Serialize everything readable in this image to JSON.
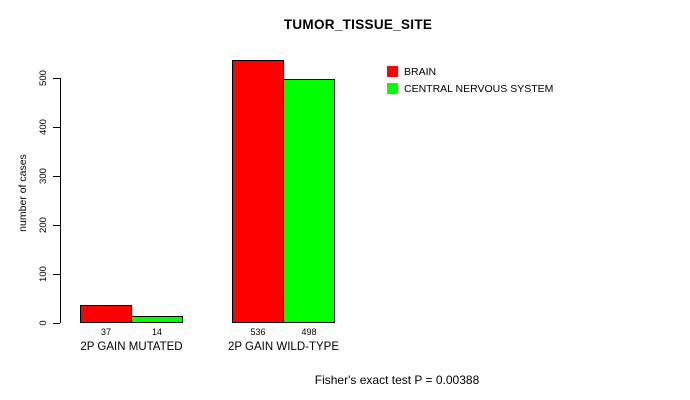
{
  "chart_data": {
    "type": "bar",
    "title": "TUMOR_TISSUE_SITE",
    "ylabel": "number of cases",
    "xlabel": "",
    "categories": [
      "2P GAIN MUTATED",
      "2P GAIN WILD-TYPE"
    ],
    "series": [
      {
        "name": "BRAIN",
        "color": "#FF0000",
        "values": [
          37,
          536
        ]
      },
      {
        "name": "CENTRAL NERVOUS SYSTEM",
        "color": "#00FF00",
        "values": [
          14,
          498
        ]
      }
    ],
    "yticks": [
      0,
      100,
      200,
      300,
      400,
      500
    ],
    "ylim": [
      0,
      500
    ],
    "grid": false,
    "legend_position": "top-right",
    "bar_border_color": "#000000",
    "background_color": "#FFFFFF",
    "annotation": "Fisher's exact test P = 0.00388"
  }
}
